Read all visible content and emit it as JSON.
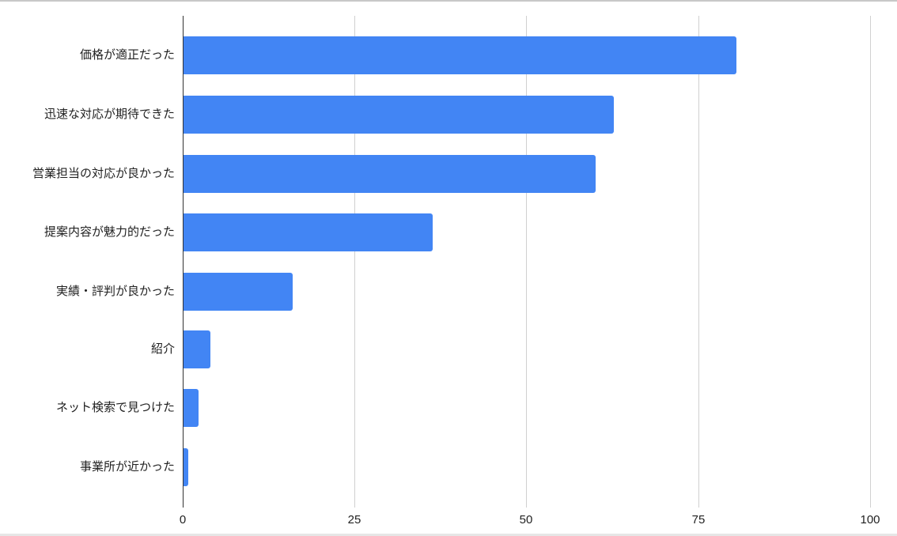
{
  "chart_data": {
    "type": "bar",
    "orientation": "horizontal",
    "title": "",
    "xlabel": "",
    "ylabel": "",
    "categories": [
      "価格が適正だった",
      "迅速な対応が期待できた",
      "営業担当の対応が良かった",
      "提案内容が魅力的だった",
      "実績・評判が良かった",
      "紹介",
      "ネット検索で見つけた",
      "事業所が近かった"
    ],
    "values": [
      80.5,
      62.7,
      60.1,
      36.4,
      16.0,
      4.0,
      2.3,
      0.8
    ],
    "xlim": [
      0,
      100
    ],
    "xticks": [
      "0",
      "25",
      "50",
      "75",
      "100"
    ],
    "grid": true,
    "legend": null,
    "bar_color": "#4285f4"
  }
}
